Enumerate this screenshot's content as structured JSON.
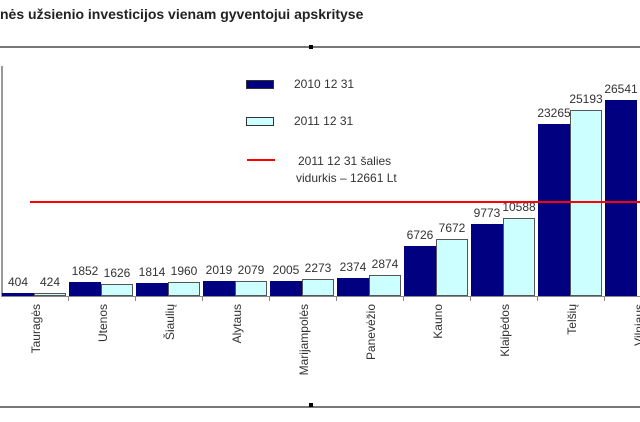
{
  "title": "nės užsienio investicijos vienam gyventojui apskrityse",
  "legend": {
    "series0": "2010 12 31",
    "series1": "2011 12 31",
    "avg_line1": "2011 12 31 šalies",
    "avg_line2": "vidurkis – 12661 Lt"
  },
  "colors": {
    "series0": "#000080",
    "series1": "#ccffff",
    "average": "#ff0000"
  },
  "chart_data": {
    "type": "bar",
    "title": "…nės užsienio investicijos vienam gyventojui apskrityse",
    "xlabel": "",
    "ylabel": "",
    "categories": [
      "Tauragės",
      "Utenos",
      "Šiaulių",
      "Alytaus",
      "Marijampolės",
      "Panevėžio",
      "Kauno",
      "Klaipėdos",
      "Telšių",
      "Vilniaus"
    ],
    "series": [
      {
        "name": "2010 12 31",
        "values": [
          404,
          1852,
          1814,
          2019,
          2005,
          2374,
          6726,
          9773,
          23265,
          26541
        ]
      },
      {
        "name": "2011 12 31",
        "values": [
          424,
          1626,
          1960,
          2079,
          2273,
          2874,
          7672,
          10588,
          25193,
          null
        ]
      }
    ],
    "reference_line": {
      "label": "2011 12 31 šalies vidurkis – 12661 Lt",
      "value": 12661
    },
    "legend_position": "upper-center",
    "grid": false,
    "ylim": [
      0,
      28000
    ]
  },
  "labels": {
    "s0": [
      "404",
      "1852",
      "1814",
      "2019",
      "2005",
      "2374",
      "6726",
      "9773",
      "23265",
      "26541"
    ],
    "s1": [
      "424",
      "1626",
      "1960",
      "2079",
      "2273",
      "2874",
      "7672",
      "10588",
      "25193",
      ""
    ]
  }
}
